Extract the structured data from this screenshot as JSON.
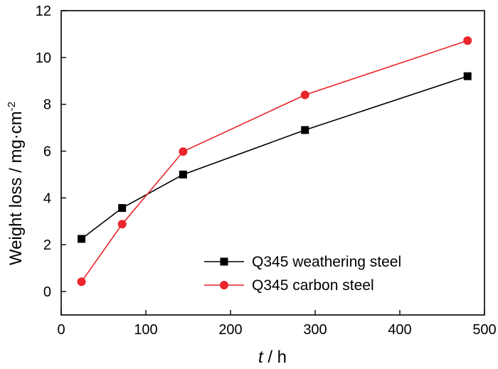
{
  "chart_data": {
    "type": "line",
    "xlabel_italic": "t",
    "xlabel_rest": " / h",
    "ylabel": "Weight loss / mg·cm",
    "ylabel_sup": "-2",
    "xlim": [
      0,
      500
    ],
    "ylim": [
      -1,
      12
    ],
    "xticks": [
      0,
      100,
      200,
      300,
      400,
      500
    ],
    "yticks": [
      0,
      2,
      4,
      6,
      8,
      10,
      12
    ],
    "grid": false,
    "legend_position": "lower-right",
    "series": [
      {
        "name": "Q345 weathering steel",
        "color": "#000000",
        "marker": "square",
        "x": [
          24,
          72,
          144,
          288,
          480
        ],
        "y": [
          2.25,
          3.57,
          5.0,
          6.9,
          9.2
        ]
      },
      {
        "name": "Q345 carbon steel",
        "color": "#e8262b",
        "marker": "circle",
        "x": [
          24,
          72,
          144,
          288,
          480
        ],
        "y": [
          0.42,
          2.88,
          5.98,
          8.4,
          10.72
        ]
      }
    ]
  }
}
